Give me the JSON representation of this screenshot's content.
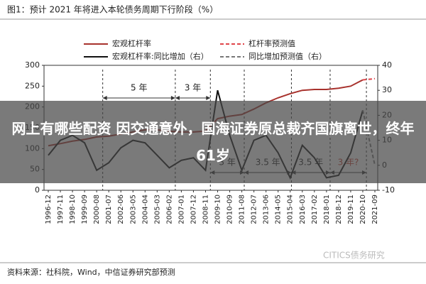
{
  "chart_data": {
    "type": "line",
    "title": "图1：预计 2021 年将进入本轮债务周期下行阶段（%）",
    "categories": [
      "1996-12",
      "1997-11",
      "1998-10",
      "1999-09",
      "2000-08",
      "2001-07",
      "2002-06",
      "2003-05",
      "2004-04",
      "2005-03",
      "2006-02",
      "2007-01",
      "2007-12",
      "2008-11",
      "2009-10",
      "2010-09",
      "2011-08",
      "2012-07",
      "2013-06",
      "2014-05",
      "2015-04",
      "2016-03",
      "2017-02",
      "2018-01",
      "2018-12",
      "2019-11",
      "2020-10",
      "2021-09"
    ],
    "series": [
      {
        "name": "宏观杠杆率",
        "color": "#a8322d",
        "dash": false,
        "axis": "y",
        "values": [
          107,
          112,
          118,
          122,
          128,
          130,
          135,
          140,
          145,
          145,
          142,
          140,
          140,
          142,
          172,
          178,
          182,
          195,
          210,
          222,
          232,
          240,
          242,
          242,
          245,
          250,
          265,
          null
        ]
      },
      {
        "name": "杠杆率预测值",
        "color": "#e0454a",
        "dash": true,
        "axis": "y",
        "values": [
          null,
          null,
          null,
          null,
          null,
          null,
          null,
          null,
          null,
          null,
          null,
          null,
          null,
          null,
          null,
          null,
          null,
          null,
          null,
          null,
          null,
          null,
          null,
          null,
          null,
          null,
          265,
          268
        ]
      },
      {
        "name": "宏观杠杆率:同比增加（右）",
        "color": "#111111",
        "dash": false,
        "axis": "y2",
        "values": [
          4,
          10,
          12,
          9,
          -2,
          1,
          7,
          10,
          9,
          4,
          -1,
          2,
          3,
          -2,
          30,
          12,
          -2,
          10,
          12,
          5,
          -5,
          8,
          3,
          -5,
          -4,
          5,
          22,
          null
        ]
      },
      {
        "name": "同比增加预测值（右）",
        "color": "#777777",
        "dash": true,
        "axis": "y2",
        "values": [
          null,
          null,
          null,
          null,
          null,
          null,
          null,
          null,
          null,
          null,
          null,
          null,
          null,
          null,
          null,
          null,
          null,
          null,
          null,
          null,
          null,
          null,
          null,
          null,
          null,
          null,
          22,
          0
        ]
      }
    ],
    "ylim": [
      0,
      300
    ],
    "yticks": [
      0,
      50,
      100,
      150,
      200,
      250,
      300
    ],
    "y2lim": [
      -10,
      40
    ],
    "y2ticks": [
      -10,
      0,
      10,
      20,
      30,
      40
    ],
    "annotations": [
      "5 年",
      "3 年",
      "3 年",
      "3.5 年",
      "3.5 年",
      "3 年?"
    ],
    "source": "资料来源：社科院，Wind，中信证券研究部预测",
    "watermark": "CITICS债务研究"
  },
  "overlay_caption": "网上有哪些配资 因交通意外，国海证券原总裁齐国旗离世，终年61岁"
}
